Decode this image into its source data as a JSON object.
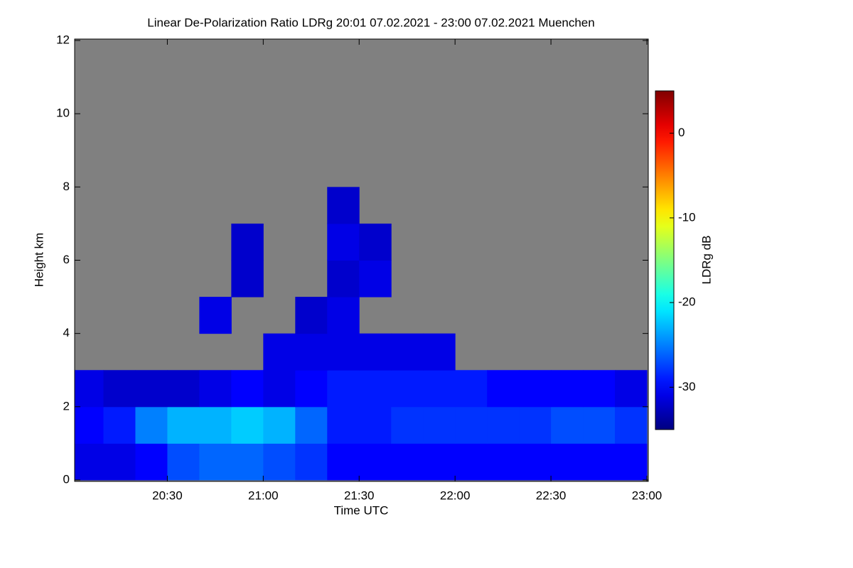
{
  "chart_data": {
    "type": "heatmap",
    "title": "Linear De-Polarization Ratio LDRg   20:01 07.02.2021 - 23:00 07.02.2021 Muenchen",
    "xlabel": "Time UTC",
    "ylabel": "Height km",
    "colorbar_label": "LDRg dB",
    "xlim": [
      20.0167,
      23.0
    ],
    "xticks": [
      {
        "value": 20.5,
        "label": "20:30"
      },
      {
        "value": 21.0,
        "label": "21:00"
      },
      {
        "value": 21.5,
        "label": "21:30"
      },
      {
        "value": 22.0,
        "label": "22:00"
      },
      {
        "value": 22.5,
        "label": "22:30"
      },
      {
        "value": 23.0,
        "label": "23:00"
      }
    ],
    "ylim": [
      0,
      12
    ],
    "yticks": [
      0,
      2,
      4,
      6,
      8,
      10,
      12
    ],
    "zlim": [
      -35,
      5
    ],
    "zticks": [
      0,
      -10,
      -20,
      -30
    ],
    "colormap": "jet",
    "missing_color": "#808080",
    "xbins": [
      20.0167,
      20.1667,
      20.3333,
      20.5,
      20.6667,
      20.8333,
      21.0,
      21.1667,
      21.3333,
      21.5,
      21.6667,
      21.8333,
      22.0,
      22.1667,
      22.3333,
      22.5,
      22.6667,
      22.8333,
      23.0
    ],
    "ybins": [
      0,
      1,
      2,
      3,
      4,
      5,
      6,
      7,
      8,
      9,
      10,
      11,
      12
    ],
    "z": [
      [
        -31,
        -31,
        -30,
        -27,
        -26,
        -26,
        -27,
        -28,
        -30,
        -30,
        -30,
        -30,
        -30,
        -30,
        -30,
        -30,
        -30,
        -30
      ],
      [
        -30,
        -29,
        -25,
        -23,
        -23,
        -22,
        -23,
        -26,
        -29,
        -29,
        -28,
        -28,
        -28,
        -28,
        -28,
        -27,
        -27,
        -28
      ],
      [
        -31,
        -32,
        -32,
        -32,
        -31,
        -30,
        -31,
        -30,
        -29,
        -29,
        -29,
        -29,
        -29,
        -30,
        -30,
        -30,
        -30,
        -31
      ],
      [
        null,
        null,
        null,
        null,
        null,
        null,
        -31,
        -31,
        -31,
        -31,
        -31,
        -31,
        null,
        null,
        null,
        null,
        null,
        null
      ],
      [
        null,
        null,
        null,
        null,
        -31,
        null,
        null,
        -32,
        -31,
        null,
        null,
        null,
        null,
        null,
        null,
        null,
        null,
        null
      ],
      [
        null,
        null,
        null,
        null,
        null,
        -32,
        null,
        null,
        -32,
        -31,
        null,
        null,
        null,
        null,
        null,
        null,
        null,
        null
      ],
      [
        null,
        null,
        null,
        null,
        null,
        -32,
        null,
        null,
        -31,
        -32,
        null,
        null,
        null,
        null,
        null,
        null,
        null,
        null
      ],
      [
        null,
        null,
        null,
        null,
        null,
        null,
        null,
        null,
        -32,
        null,
        null,
        null,
        null,
        null,
        null,
        null,
        null,
        null
      ],
      [
        null,
        null,
        null,
        null,
        null,
        null,
        null,
        null,
        null,
        null,
        null,
        null,
        null,
        null,
        null,
        null,
        null,
        null
      ],
      [
        null,
        null,
        null,
        null,
        null,
        null,
        null,
        null,
        null,
        null,
        null,
        null,
        null,
        null,
        null,
        null,
        null,
        null
      ],
      [
        null,
        null,
        null,
        null,
        null,
        null,
        null,
        null,
        null,
        null,
        null,
        null,
        null,
        null,
        null,
        null,
        null,
        null
      ],
      [
        null,
        null,
        null,
        null,
        null,
        null,
        null,
        null,
        null,
        null,
        null,
        null,
        null,
        null,
        null,
        null,
        null,
        null
      ]
    ]
  }
}
